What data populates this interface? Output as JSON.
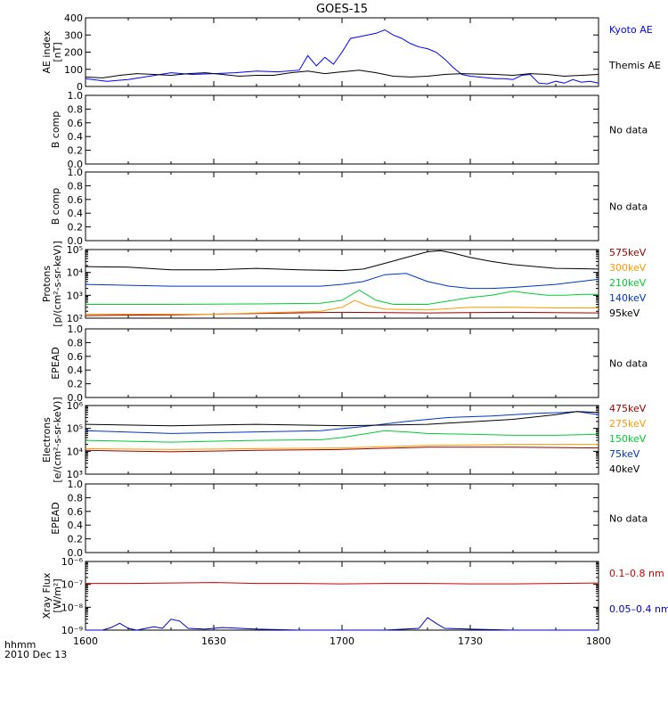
{
  "chart_data": {
    "type": "line",
    "title": "GOES-15",
    "x_axis": {
      "ticks": [
        "1600",
        "1630",
        "1700",
        "1730",
        "1800"
      ],
      "label_left_top": "hhmm",
      "label_left_bottom": "2010 Dec 13",
      "range_minutes": [
        0,
        120
      ]
    },
    "panels": [
      {
        "id": "ae",
        "ylabel": [
          "AE index",
          "[nT]"
        ],
        "scale": "linear",
        "ylim": [
          0,
          400
        ],
        "yticks": [
          "0",
          "100",
          "200",
          "300",
          "400"
        ],
        "series": [
          {
            "name": "Kyoto AE",
            "color": "#0000ff",
            "x": [
              0,
              5,
              10,
              15,
              20,
              25,
              30,
              35,
              40,
              45,
              50,
              52,
              54,
              56,
              58,
              60,
              62,
              64,
              66,
              68,
              70,
              72,
              74,
              76,
              78,
              80,
              82,
              84,
              86,
              88,
              90,
              92,
              94,
              96,
              98,
              100,
              102,
              104,
              106,
              108,
              110,
              112,
              114,
              116,
              118,
              120
            ],
            "y": [
              45,
              30,
              40,
              60,
              80,
              70,
              75,
              80,
              90,
              85,
              95,
              180,
              120,
              170,
              130,
              200,
              280,
              290,
              300,
              310,
              330,
              300,
              280,
              250,
              230,
              220,
              200,
              160,
              110,
              70,
              60,
              55,
              50,
              45,
              45,
              40,
              65,
              70,
              20,
              15,
              30,
              20,
              40,
              25,
              30,
              20
            ]
          },
          {
            "name": "Themis AE",
            "color": "#000000",
            "x": [
              0,
              4,
              8,
              12,
              16,
              20,
              24,
              28,
              32,
              36,
              40,
              44,
              48,
              52,
              56,
              60,
              64,
              68,
              72,
              76,
              80,
              84,
              88,
              92,
              96,
              100,
              104,
              108,
              112,
              116,
              120
            ],
            "y": [
              55,
              50,
              65,
              75,
              70,
              65,
              75,
              80,
              70,
              60,
              65,
              65,
              80,
              90,
              75,
              85,
              95,
              80,
              60,
              55,
              60,
              70,
              75,
              72,
              70,
              65,
              75,
              70,
              60,
              65,
              70
            ]
          }
        ]
      },
      {
        "id": "bcomp1",
        "ylabel": [
          "B comp"
        ],
        "scale": "linear",
        "ylim": [
          0,
          1
        ],
        "yticks": [
          "0.0",
          "0.2",
          "0.4",
          "0.6",
          "0.8",
          "1.0"
        ],
        "note": "No data",
        "series": []
      },
      {
        "id": "bcomp2",
        "ylabel": [
          "B comp"
        ],
        "scale": "linear",
        "ylim": [
          0,
          1
        ],
        "yticks": [
          "0.0",
          "0.2",
          "0.4",
          "0.6",
          "0.8",
          "1.0"
        ],
        "note": "No data",
        "series": []
      },
      {
        "id": "protons",
        "ylabel": [
          "Protons",
          "[p/(cm²-s-sr-keV)]"
        ],
        "scale": "log",
        "ylim_log10": [
          2,
          5
        ],
        "yticks": [
          "10²",
          "10³",
          "10⁴",
          "10⁵"
        ],
        "series": [
          {
            "name": "575keV",
            "color": "#990000",
            "x": [
              0,
              20,
              40,
              60,
              80,
              100,
              120
            ],
            "y": [
              130,
              140,
              160,
              180,
              170,
              180,
              170
            ]
          },
          {
            "name": "300keV",
            "color": "#ff9900",
            "x": [
              0,
              30,
              55,
              60,
              63,
              66,
              70,
              80,
              90,
              100,
              110,
              120
            ],
            "y": [
              150,
              150,
              200,
              300,
              600,
              350,
              250,
              230,
              300,
              300,
              280,
              280
            ]
          },
          {
            "name": "210keV",
            "color": "#00cc33",
            "x": [
              0,
              20,
              40,
              55,
              60,
              64,
              68,
              72,
              80,
              90,
              95,
              100,
              104,
              108,
              112,
              116,
              120
            ],
            "y": [
              400,
              400,
              420,
              450,
              600,
              1700,
              600,
              400,
              400,
              800,
              1000,
              1500,
              1200,
              1000,
              1000,
              1100,
              1100
            ]
          },
          {
            "name": "140keV",
            "color": "#0033cc",
            "x": [
              0,
              20,
              40,
              55,
              60,
              65,
              70,
              75,
              80,
              85,
              90,
              95,
              100,
              110,
              120
            ],
            "y": [
              3000,
              2500,
              2500,
              2500,
              3000,
              4000,
              8000,
              9000,
              4000,
              2500,
              2000,
              2000,
              2200,
              3000,
              5000
            ]
          },
          {
            "name": "95keV",
            "color": "#000000",
            "x": [
              0,
              10,
              20,
              30,
              40,
              50,
              60,
              65,
              70,
              75,
              80,
              83,
              86,
              90,
              95,
              100,
              110,
              120
            ],
            "y": [
              18000,
              17000,
              13000,
              13000,
              15000,
              13000,
              12000,
              14000,
              25000,
              45000,
              80000,
              90000,
              70000,
              45000,
              30000,
              22000,
              15000,
              14000
            ]
          }
        ]
      },
      {
        "id": "epead1",
        "ylabel": [
          "EPEAD"
        ],
        "scale": "linear",
        "ylim": [
          0,
          1
        ],
        "yticks": [
          "0.0",
          "0.2",
          "0.4",
          "0.6",
          "0.8",
          "1.0"
        ],
        "note": "No data",
        "series": []
      },
      {
        "id": "electrons",
        "ylabel": [
          "Electrons",
          "[e/(cm²-s-sr-keV)]"
        ],
        "scale": "log",
        "ylim_log10": [
          3,
          6
        ],
        "yticks": [
          "10³",
          "10⁴",
          "10⁵",
          "10⁶"
        ],
        "series": [
          {
            "name": "475keV",
            "color": "#990000",
            "x": [
              0,
              20,
              40,
              60,
              80,
              100,
              120
            ],
            "y": [
              11000,
              9500,
              11000,
              12000,
              15000,
              15000,
              14000
            ]
          },
          {
            "name": "275keV",
            "color": "#ff9900",
            "x": [
              0,
              20,
              40,
              60,
              80,
              100,
              120
            ],
            "y": [
              13000,
              12000,
              13000,
              14000,
              18000,
              20000,
              20000
            ]
          },
          {
            "name": "150keV",
            "color": "#00cc33",
            "x": [
              0,
              20,
              40,
              55,
              60,
              70,
              75,
              80,
              90,
              100,
              110,
              120
            ],
            "y": [
              30000,
              25000,
              30000,
              32000,
              40000,
              80000,
              70000,
              60000,
              55000,
              50000,
              50000,
              55000
            ]
          },
          {
            "name": "75keV",
            "color": "#0033cc",
            "x": [
              0,
              20,
              40,
              55,
              65,
              75,
              85,
              95,
              105,
              112,
              115,
              120
            ],
            "y": [
              80000,
              60000,
              70000,
              80000,
              120000,
              200000,
              300000,
              350000,
              450000,
              500000,
              550000,
              400000
            ]
          },
          {
            "name": "40keV",
            "color": "#000000",
            "x": [
              0,
              20,
              40,
              60,
              80,
              100,
              110,
              115,
              120
            ],
            "y": [
              150000,
              130000,
              150000,
              130000,
              150000,
              250000,
              400000,
              550000,
              500000
            ]
          }
        ]
      },
      {
        "id": "epead2",
        "ylabel": [
          "EPEAD"
        ],
        "scale": "linear",
        "ylim": [
          0,
          1
        ],
        "yticks": [
          "0.0",
          "0.2",
          "0.4",
          "0.6",
          "0.8",
          "1.0"
        ],
        "note": "No data",
        "series": []
      },
      {
        "id": "xray",
        "ylabel": [
          "Xray Flux",
          "[W/m²]"
        ],
        "scale": "log",
        "ylim_log10": [
          -9,
          -6
        ],
        "yticks": [
          "10⁻⁹",
          "10⁻⁸",
          "10⁻⁷",
          "10⁻⁶"
        ],
        "series": [
          {
            "name": "0.1–0.8 nm",
            "color": "#cc0000",
            "x": [
              0,
              10,
              20,
              30,
              40,
              50,
              60,
              70,
              80,
              90,
              100,
              110,
              120
            ],
            "y": [
              1.1e-07,
              1.1e-07,
              1.15e-07,
              1.2e-07,
              1.1e-07,
              1.1e-07,
              1.05e-07,
              1.1e-07,
              1.1e-07,
              1.05e-07,
              1.05e-07,
              1.1e-07,
              1.15e-07
            ]
          },
          {
            "name": "0.05–0.4 nm",
            "color": "#0000cc",
            "x": [
              0,
              4,
              6,
              8,
              10,
              12,
              16,
              18,
              20,
              22,
              24,
              28,
              32,
              40,
              50,
              60,
              70,
              78,
              80,
              82,
              84,
              90,
              100,
              110,
              120
            ],
            "y": [
              1e-09,
              1e-09,
              1.3e-09,
              2e-09,
              1.2e-09,
              1e-09,
              1.4e-09,
              1.2e-09,
              3e-09,
              2.5e-09,
              1.2e-09,
              1.1e-09,
              1.3e-09,
              1.1e-09,
              1e-09,
              1e-09,
              1e-09,
              1.2e-09,
              3.5e-09,
              2e-09,
              1.2e-09,
              1.1e-09,
              1e-09,
              1e-09,
              1e-09
            ]
          }
        ]
      }
    ]
  }
}
